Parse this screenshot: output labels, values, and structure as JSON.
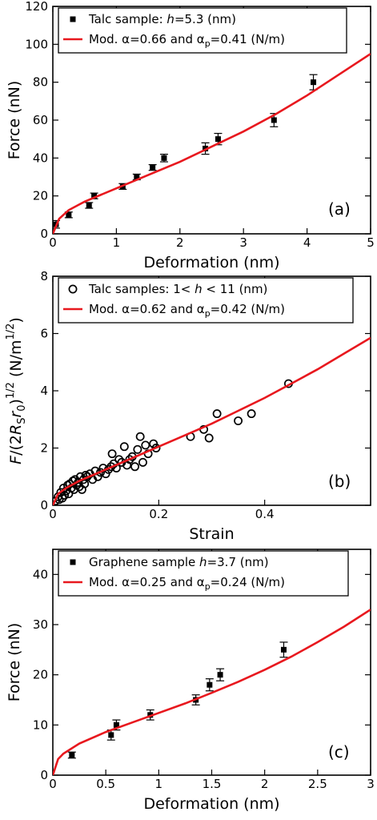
{
  "chart_data": [
    {
      "type": "scatter",
      "panel_label": "(a)",
      "xlabel": "Deformation (nm)",
      "ylabel": "Force (nN)",
      "xlim": [
        0,
        5
      ],
      "ylim": [
        0,
        120
      ],
      "x_ticks": [
        "0",
        "1",
        "2",
        "3",
        "4",
        "5"
      ],
      "y_ticks": [
        "0",
        "20",
        "40",
        "60",
        "80",
        "100",
        "120"
      ],
      "grid": false,
      "legend_position": "top-left",
      "series": [
        {
          "name": "Talc sample: h=5.3 (nm)",
          "kind": "points",
          "marker": "filled-square",
          "color": "#000000",
          "x": [
            0.05,
            0.25,
            0.57,
            0.65,
            1.1,
            1.32,
            1.57,
            1.75,
            2.4,
            2.6,
            3.48,
            4.1
          ],
          "y": [
            5,
            10,
            15,
            20,
            25,
            30,
            35,
            40,
            45,
            50,
            60,
            80
          ],
          "err": [
            2,
            1.5,
            1.5,
            1.5,
            1.5,
            1.5,
            1.5,
            2,
            3,
            3,
            3.5,
            4
          ]
        },
        {
          "name": "Mod. α=0.66 and αp=0.41 (N/m)",
          "kind": "line",
          "color": "#e8181e",
          "x": [
            0,
            0.1,
            0.25,
            0.5,
            0.75,
            1,
            1.5,
            2,
            2.5,
            3,
            3.5,
            4,
            4.5,
            5
          ],
          "y": [
            0,
            8,
            12.5,
            17,
            20.5,
            24,
            31,
            38,
            46,
            54,
            63,
            73,
            84,
            95
          ]
        }
      ],
      "legend_entries": [
        {
          "pre": "Talc sample: ",
          "it": "h",
          "post": "=5.3 (nm)"
        },
        {
          "pre": "Mod. α=0.66 and α",
          "sub": "p",
          "post": "=0.41 (N/m)"
        }
      ]
    },
    {
      "type": "scatter",
      "panel_label": "(b)",
      "xlabel": "Strain",
      "ylabel_parts": {
        "main": "F/(2R",
        "sub1": "S",
        "mid": "r",
        "sub2": "0",
        "close": ")",
        "sup": "1/2",
        "unit": " (N/m",
        "unit_sup": "1/2",
        "unit_close": ")"
      },
      "xlim": [
        0,
        0.6
      ],
      "ylim": [
        0,
        8
      ],
      "x_ticks": [
        "0",
        "0.2",
        "0.4"
      ],
      "y_ticks": [
        "0",
        "2",
        "4",
        "6",
        "8"
      ],
      "grid": false,
      "legend_position": "top-left",
      "series": [
        {
          "name": "Talc samples: 1< h < 11 (nm)",
          "kind": "points",
          "marker": "open-circle",
          "color": "#000000",
          "x": [
            0.005,
            0.01,
            0.012,
            0.015,
            0.018,
            0.02,
            0.022,
            0.025,
            0.028,
            0.03,
            0.032,
            0.035,
            0.038,
            0.04,
            0.042,
            0.045,
            0.048,
            0.05,
            0.052,
            0.055,
            0.058,
            0.06,
            0.062,
            0.065,
            0.07,
            0.075,
            0.08,
            0.085,
            0.09,
            0.095,
            0.1,
            0.105,
            0.11,
            0.112,
            0.115,
            0.12,
            0.125,
            0.13,
            0.135,
            0.14,
            0.145,
            0.15,
            0.155,
            0.16,
            0.165,
            0.17,
            0.175,
            0.18,
            0.19,
            0.195,
            0.26,
            0.285,
            0.295,
            0.31,
            0.35,
            0.375,
            0.445
          ],
          "y": [
            0.15,
            0.3,
            0.2,
            0.45,
            0.25,
            0.6,
            0.35,
            0.5,
            0.7,
            0.4,
            0.75,
            0.6,
            0.85,
            0.55,
            0.9,
            0.7,
            0.8,
            0.65,
            1.0,
            0.55,
            0.9,
            0.75,
            1.05,
            1.0,
            1.1,
            0.9,
            1.2,
            1.0,
            1.15,
            1.3,
            1.1,
            1.25,
            1.35,
            1.8,
            1.45,
            1.3,
            1.6,
            1.5,
            2.05,
            1.4,
            1.6,
            1.7,
            1.35,
            1.95,
            2.4,
            1.5,
            2.1,
            1.8,
            2.15,
            2.0,
            2.4,
            2.65,
            2.35,
            3.2,
            2.95,
            3.2,
            4.25
          ],
          "err": []
        },
        {
          "name": "Mod. α=0.62 and αp=0.42 (N/m)",
          "kind": "line",
          "color": "#e8181e",
          "x": [
            0,
            0.01,
            0.025,
            0.05,
            0.075,
            0.1,
            0.15,
            0.2,
            0.25,
            0.3,
            0.35,
            0.4,
            0.45,
            0.5,
            0.55,
            0.6
          ],
          "y": [
            0,
            0.4,
            0.6,
            0.85,
            1.05,
            1.25,
            1.65,
            2.05,
            2.45,
            2.85,
            3.3,
            3.75,
            4.25,
            4.75,
            5.3,
            5.85
          ]
        }
      ],
      "legend_entries": [
        {
          "pre": "Talc samples: 1< ",
          "it": "h",
          "post": " < 11 (nm)"
        },
        {
          "pre": "Mod. α=0.62 and α",
          "sub": "p",
          "post": "=0.42 (N/m)"
        }
      ]
    },
    {
      "type": "scatter",
      "panel_label": "(c)",
      "xlabel": "Deformation (nm)",
      "ylabel": "Force (nN)",
      "xlim": [
        0,
        3
      ],
      "ylim": [
        0,
        45
      ],
      "x_ticks": [
        "0",
        "0.5",
        "1",
        "1.5",
        "2",
        "2.5",
        "3"
      ],
      "y_ticks": [
        "0",
        "10",
        "20",
        "30",
        "40"
      ],
      "grid": false,
      "legend_position": "top-left",
      "series": [
        {
          "name": "Graphene sample h=3.7 (nm)",
          "kind": "points",
          "marker": "filled-square",
          "color": "#000000",
          "x": [
            0.18,
            0.55,
            0.6,
            0.92,
            1.35,
            1.48,
            1.58,
            2.18
          ],
          "y": [
            4,
            8,
            10,
            12,
            15,
            18,
            20,
            25
          ],
          "err": [
            0.6,
            1,
            1,
            1,
            1,
            1.2,
            1.2,
            1.5
          ]
        },
        {
          "name": "Mod. α=0.25 and αp=0.24 (N/m)",
          "kind": "line",
          "color": "#e8181e",
          "x": [
            0,
            0.05,
            0.1,
            0.25,
            0.5,
            0.75,
            1,
            1.25,
            1.5,
            1.75,
            2,
            2.25,
            2.5,
            2.75,
            3
          ],
          "y": [
            0,
            3.2,
            4.3,
            6.3,
            8.6,
            10.5,
            12.4,
            14.3,
            16.4,
            18.6,
            21,
            23.6,
            26.5,
            29.6,
            33
          ]
        }
      ],
      "legend_entries": [
        {
          "pre": "Graphene sample ",
          "it": "h",
          "post": "=3.7 (nm)"
        },
        {
          "pre": "Mod. α=0.25 and α",
          "sub": "p",
          "post": "=0.24 (N/m)"
        }
      ]
    }
  ]
}
